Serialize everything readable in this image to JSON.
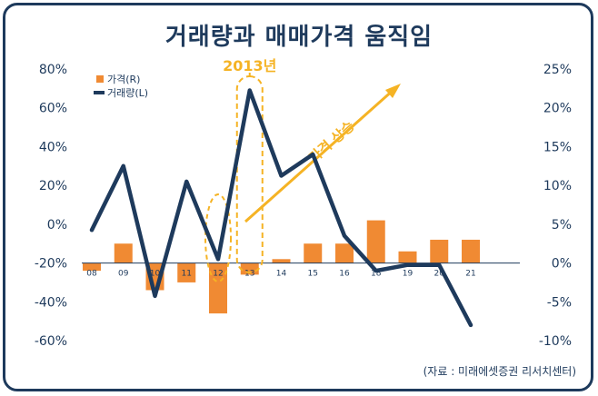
{
  "title": "거래량과 매매가격 움직임",
  "source": "(자료 : 미래에셋증권 리서치센터)",
  "colors": {
    "bar": "#f08a33",
    "line": "#1e3a5c",
    "annotation": "#f5b324",
    "axis": "#1e3a5c",
    "frame": "#1e3a5c"
  },
  "chart_data": {
    "type": "bar+line",
    "categories": [
      "08",
      "09",
      "10",
      "11",
      "12",
      "13",
      "14",
      "15",
      "16",
      "18",
      "19",
      "20",
      "21"
    ],
    "series": [
      {
        "name": "가격(R)",
        "type": "bar",
        "axis": "right",
        "values": [
          -1,
          2.5,
          -3.5,
          -2.5,
          -6.5,
          -1.5,
          0.5,
          2.5,
          2.5,
          5.5,
          1.5,
          3,
          3
        ]
      },
      {
        "name": "거래량(L)",
        "type": "line",
        "axis": "left",
        "values": [
          -3,
          30,
          -37,
          22,
          -18,
          69,
          25,
          36,
          -6,
          -24,
          -21,
          -21,
          -52
        ]
      }
    ],
    "left_axis": {
      "min": -60,
      "max": 80,
      "ticks": [
        "80%",
        "60%",
        "40%",
        "20%",
        "0%",
        "-20%",
        "-40%",
        "-60%"
      ]
    },
    "right_axis": {
      "min": -10,
      "max": 25,
      "ticks": [
        "25%",
        "20%",
        "15%",
        "10%",
        "5%",
        "0%",
        "-5%",
        "-10%"
      ]
    },
    "annotations": {
      "year_label": "2013년",
      "trend_label": "가격 상승"
    },
    "legend_position": "top-left"
  }
}
